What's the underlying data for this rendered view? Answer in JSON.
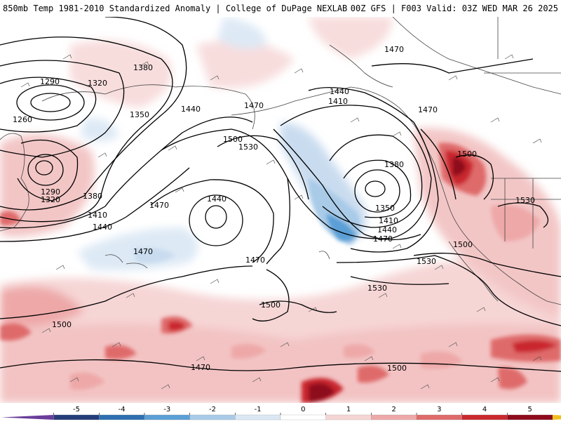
{
  "header": {
    "left_title": "850mb Temp 1981-2010 Standardized Anomaly | College of DuPage NEXLAB",
    "right_title": "00Z GFS | F003 Valid: 03Z WED MAR 26 2025"
  },
  "colorbar": {
    "ticks": [
      "-5",
      "-4",
      "-3",
      "-2",
      "-1",
      "0",
      "1",
      "2",
      "3",
      "4",
      "5"
    ],
    "colors": [
      "#6a3d9a",
      "#243c78",
      "#2d6fb0",
      "#5a9fd6",
      "#a9cbe8",
      "#dbe8f4",
      "#ffffff",
      "#f6d5d5",
      "#eea8a8",
      "#df6a6a",
      "#c9282d",
      "#8e0b1c",
      "#f0c020"
    ]
  },
  "contour_labels": [
    {
      "id": "l1470a",
      "text": "1470"
    },
    {
      "id": "l1380a",
      "text": "1380"
    },
    {
      "id": "l1290a",
      "text": "1290"
    },
    {
      "id": "l1320a",
      "text": "1320"
    },
    {
      "id": "l1260",
      "text": "1260"
    },
    {
      "id": "l1350a",
      "text": "1350"
    },
    {
      "id": "l1290b",
      "text": "1290"
    },
    {
      "id": "l1320b",
      "text": "1320"
    },
    {
      "id": "l1380b",
      "text": "1380"
    },
    {
      "id": "l1410a",
      "text": "1410"
    },
    {
      "id": "l1440a",
      "text": "1440"
    },
    {
      "id": "l1440b",
      "text": "1440"
    },
    {
      "id": "l1470b",
      "text": "1470"
    },
    {
      "id": "l1500a",
      "text": "1500"
    },
    {
      "id": "l1530a",
      "text": "1530"
    },
    {
      "id": "l1470c",
      "text": "1470"
    },
    {
      "id": "l1440c",
      "text": "1440"
    },
    {
      "id": "l1470d",
      "text": "1470"
    },
    {
      "id": "l1470e",
      "text": "1470"
    },
    {
      "id": "l1440d",
      "text": "1440"
    },
    {
      "id": "l1410b",
      "text": "1410"
    },
    {
      "id": "l1470f",
      "text": "1470"
    },
    {
      "id": "l1380c",
      "text": "1380"
    },
    {
      "id": "l1350b",
      "text": "1350"
    },
    {
      "id": "l1410c",
      "text": "1410"
    },
    {
      "id": "l1440e",
      "text": "1440"
    },
    {
      "id": "l1470g",
      "text": "1470"
    },
    {
      "id": "l1500b",
      "text": "1500"
    },
    {
      "id": "l1530b",
      "text": "1530"
    },
    {
      "id": "l1500c",
      "text": "1500"
    },
    {
      "id": "l1530c",
      "text": "1530"
    },
    {
      "id": "l1530d",
      "text": "1530"
    },
    {
      "id": "l1500d",
      "text": "1500"
    },
    {
      "id": "l1500e",
      "text": "1500"
    },
    {
      "id": "l1470h",
      "text": "1470"
    },
    {
      "id": "l1500f",
      "text": "1500"
    }
  ]
}
